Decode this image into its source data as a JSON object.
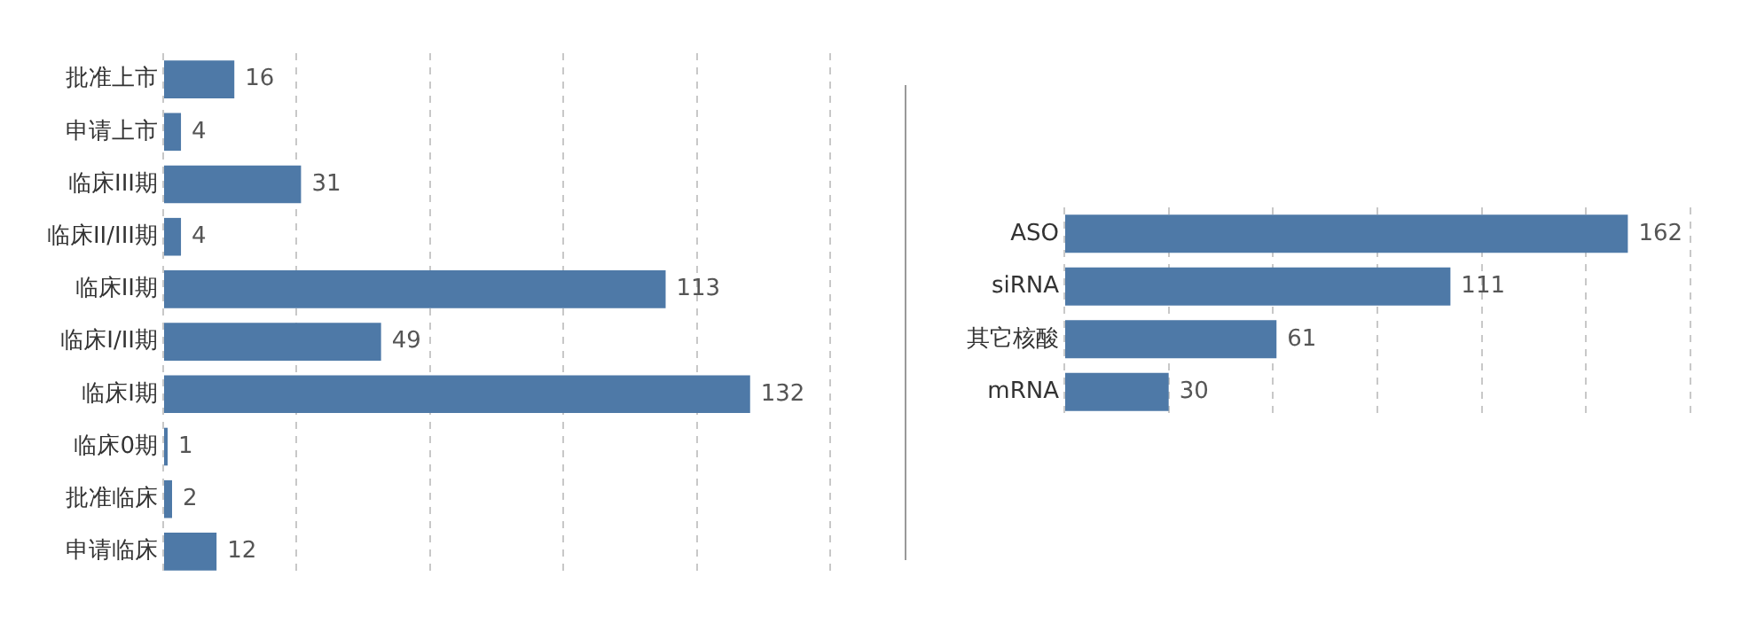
{
  "chart_data": [
    {
      "type": "bar",
      "orientation": "horizontal",
      "categories": [
        "批准上市",
        "申请上市",
        "临床III期",
        "临床II/III期",
        "临床II期",
        "临床I/II期",
        "临床I期",
        "临床0期",
        "批准临床",
        "申请临床"
      ],
      "values": [
        16,
        4,
        31,
        4,
        113,
        49,
        132,
        1,
        2,
        12
      ],
      "color": "#4e79a7",
      "xlim": [
        0,
        150
      ],
      "xticks": [
        {
          "value": 0,
          "label": null
        },
        {
          "value": 30,
          "label": null
        },
        {
          "value": 60,
          "label": null
        },
        {
          "value": 90,
          "label": null
        },
        {
          "value": 120,
          "label": null
        },
        {
          "value": 150,
          "label": null
        }
      ],
      "grid": "x",
      "tick_labels": "y",
      "data_labels": true
    },
    {
      "type": "bar",
      "orientation": "horizontal",
      "categories": [
        "ASO",
        "siRNA",
        "其它核酸",
        "mRNA"
      ],
      "values": [
        162,
        111,
        61,
        30
      ],
      "color": "#4e79a7",
      "xlim": [
        0,
        180
      ],
      "xticks": [
        {
          "value": 0,
          "label": null
        },
        {
          "value": 30,
          "label": null
        },
        {
          "value": 60,
          "label": null
        },
        {
          "value": 90,
          "label": null
        },
        {
          "value": 120,
          "label": null
        },
        {
          "value": 150,
          "label": null
        },
        {
          "value": 180,
          "label": null
        }
      ],
      "grid": "x",
      "tick_labels": "y",
      "data_labels": true
    }
  ]
}
